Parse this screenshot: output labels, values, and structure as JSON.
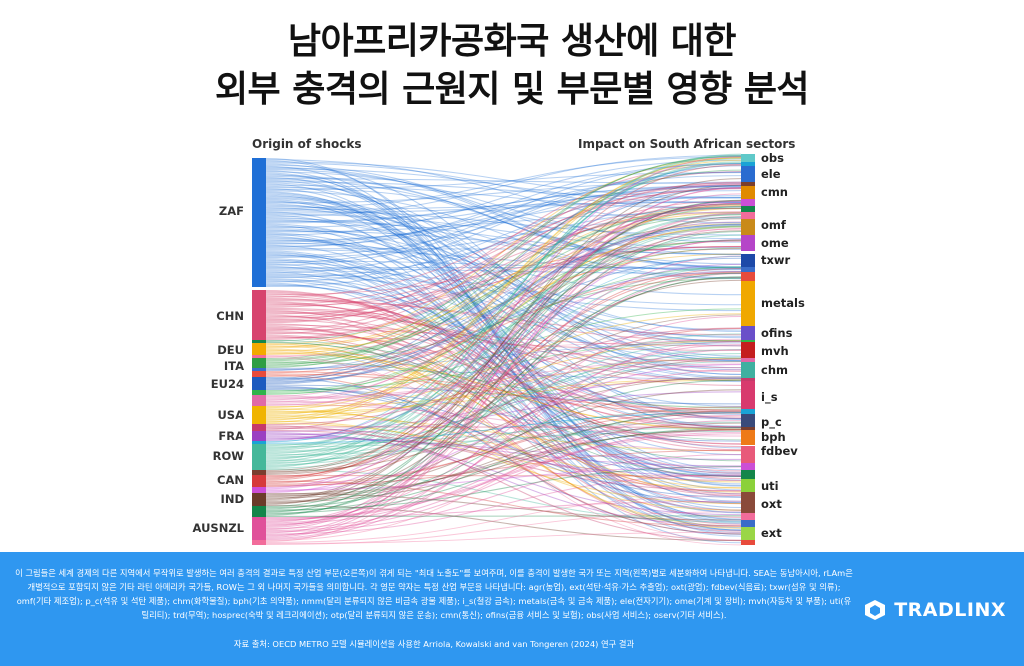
{
  "title": {
    "line1": "남아프리카공화국 생산에 대한",
    "line2": "외부 충격의 근원지 및 부문별 영향 분석"
  },
  "diagram": {
    "left_header": "Origin of shocks",
    "right_header": "Impact on South African sectors",
    "sources": [
      {
        "label": "ZAF",
        "color": "#1f6fd6"
      },
      {
        "label": "CHN",
        "color": "#d7446e"
      },
      {
        "label": "DEU",
        "color": "#f2a900"
      },
      {
        "label": "ITA",
        "color": "#2e9e44"
      },
      {
        "label": "EU24",
        "color": "#1d5bbf"
      },
      {
        "label": "USA",
        "color": "#f0b400"
      },
      {
        "label": "FRA",
        "color": "#9b3fc2"
      },
      {
        "label": "ROW",
        "color": "#45b89a"
      },
      {
        "label": "CAN",
        "color": "#d63a3a"
      },
      {
        "label": "IND",
        "color": "#6b3b2a"
      },
      {
        "label": "AUSNZL",
        "color": "#e0509a"
      }
    ],
    "targets": [
      {
        "label": "obs",
        "color": "#5fc9c9"
      },
      {
        "label": "ele",
        "color": "#2a6cd0"
      },
      {
        "label": "cmn",
        "color": "#e08a00"
      },
      {
        "label": "omf",
        "color": "#c98a1a"
      },
      {
        "label": "ome",
        "color": "#b545c8"
      },
      {
        "label": "txwr",
        "color": "#1d49a8"
      },
      {
        "label": "metals",
        "color": "#f0a800"
      },
      {
        "label": "ofins",
        "color": "#6a4fc9"
      },
      {
        "label": "mvh",
        "color": "#c41e1e"
      },
      {
        "label": "chm",
        "color": "#3fb0a0"
      },
      {
        "label": "i_s",
        "color": "#d83a6e"
      },
      {
        "label": "p_c",
        "color": "#3a4a7a"
      },
      {
        "label": "bph",
        "color": "#ee7a18"
      },
      {
        "label": "fdbev",
        "color": "#e85a7a"
      },
      {
        "label": "uti",
        "color": "#8bd13a"
      },
      {
        "label": "oxt",
        "color": "#8a4a3a"
      },
      {
        "label": "ext",
        "color": "#9ad646"
      }
    ],
    "extra_node_colors": [
      "#1aa3d6",
      "#7a3e2e",
      "#cc4fd6",
      "#14854a",
      "#f26c9b",
      "#3a6cc8",
      "#e84b3c",
      "#2fb34a",
      "#e06aa8",
      "#c63a6a"
    ]
  },
  "footer": {
    "note": "이 그림들은 세계 경제의 다른 지역에서 무작위로 발생하는 여러 충격의 결과로 특정 산업 부문(오른쪽)이 겪게 되는 \"최대 노출도\"를 보여주며, 이를 충격이 발생한 국가 또는 지역(왼쪽)별로 세분화하여 나타냅니다. SEA는 동남아시아, rLAm은 개별적으로 포함되지 않은 기타 라틴 아메리카 국가들, ROW는 그 외 나머지 국가들을 의미합니다. 각 영문 약자는 특정 산업 부문을 나타냅니다: agr(농업), ext(석탄·석유·가스 추출업); oxt(광업); fdbev(식음료); txwr(섬유 및 의류); omf(기타 제조업); p_c(석유 및 석탄 제품); chm(화학물질); bph(기초 의약품); nmm(달리 분류되지 않은 비금속 광물 제품); i_s(철강 금속); metals(금속 및 금속 제품); ele(전자기기); ome(기계 및 장비); mvh(자동차 및 부품); uti(유틸리티); trd(무역); hosprec(숙박 및 레크리에이션); otp(달리 분류되지 않은 운송); cmn(통신); ofins(금융 서비스 및 보험); obs(사업 서비스); oserv(기타 서비스).",
    "source": "자료 출처: OECD METRO 모델 시뮬레이션을 사용한 Arriola, Kowalski and van Tongeren (2024) 연구 결과",
    "brand": "TRADLINX"
  }
}
